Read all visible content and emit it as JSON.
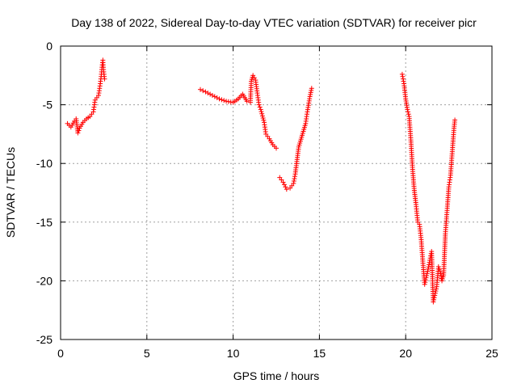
{
  "chart_data": {
    "type": "scatter",
    "title": "Day 138 of 2022, Sidereal Day-to-day VTEC variation (SDTVAR) for receiver picr",
    "xlabel": "GPS time / hours",
    "ylabel": "SDTVAR / TECUs",
    "xlim": [
      0,
      25
    ],
    "ylim": [
      -25,
      0
    ],
    "xticks": [
      "0",
      "5",
      "10",
      "15",
      "20",
      "25"
    ],
    "yticks": [
      "0",
      "-5",
      "-10",
      "-15",
      "-20",
      "-25"
    ],
    "grid": true,
    "marker": "+",
    "color": "#ff0000",
    "series": [
      {
        "segments": [
          [
            [
              0.4,
              -6.6
            ],
            [
              0.6,
              -6.9
            ],
            [
              0.8,
              -6.4
            ],
            [
              0.9,
              -6.2
            ],
            [
              1.0,
              -7.4
            ],
            [
              1.1,
              -7.0
            ],
            [
              1.3,
              -6.5
            ],
            [
              1.5,
              -6.2
            ],
            [
              1.7,
              -6.0
            ],
            [
              1.9,
              -5.6
            ],
            [
              2.0,
              -4.6
            ],
            [
              2.1,
              -4.4
            ],
            [
              2.2,
              -4.2
            ],
            [
              2.3,
              -3.2
            ],
            [
              2.35,
              -2.6
            ],
            [
              2.4,
              -1.8
            ],
            [
              2.45,
              -1.2
            ],
            [
              2.5,
              -2.2
            ],
            [
              2.55,
              -2.8
            ]
          ],
          [
            [
              8.1,
              -3.7
            ],
            [
              8.4,
              -3.9
            ],
            [
              8.8,
              -4.2
            ],
            [
              9.2,
              -4.5
            ],
            [
              9.6,
              -4.7
            ],
            [
              10.0,
              -4.8
            ],
            [
              10.3,
              -4.5
            ],
            [
              10.55,
              -4.1
            ],
            [
              10.8,
              -4.7
            ],
            [
              11.0,
              -4.8
            ],
            [
              11.05,
              -3.0
            ],
            [
              11.15,
              -2.5
            ],
            [
              11.3,
              -2.9
            ],
            [
              11.4,
              -4.0
            ],
            [
              11.5,
              -5.0
            ],
            [
              11.6,
              -5.4
            ],
            [
              11.8,
              -6.5
            ],
            [
              11.9,
              -7.5
            ],
            [
              12.1,
              -7.9
            ],
            [
              12.3,
              -8.4
            ],
            [
              12.5,
              -8.7
            ]
          ],
          [
            [
              12.7,
              -11.2
            ],
            [
              12.9,
              -11.6
            ],
            [
              13.1,
              -12.2
            ],
            [
              13.3,
              -12.1
            ],
            [
              13.5,
              -11.7
            ],
            [
              13.6,
              -10.9
            ],
            [
              13.8,
              -8.6
            ],
            [
              14.0,
              -7.6
            ],
            [
              14.2,
              -6.6
            ],
            [
              14.3,
              -5.6
            ],
            [
              14.45,
              -4.3
            ],
            [
              14.55,
              -3.6
            ]
          ],
          [
            [
              19.8,
              -2.4
            ],
            [
              19.9,
              -3.2
            ],
            [
              20.0,
              -4.5
            ],
            [
              20.1,
              -5.4
            ],
            [
              20.2,
              -6.0
            ],
            [
              20.3,
              -8.0
            ],
            [
              20.4,
              -10.5
            ],
            [
              20.5,
              -12.3
            ],
            [
              20.6,
              -13.5
            ],
            [
              20.7,
              -15.0
            ],
            [
              20.8,
              -15.2
            ],
            [
              20.9,
              -16.5
            ],
            [
              21.0,
              -18.5
            ],
            [
              21.1,
              -20.3
            ],
            [
              21.3,
              -19.0
            ],
            [
              21.5,
              -17.5
            ],
            [
              21.6,
              -21.8
            ],
            [
              21.8,
              -20.5
            ],
            [
              21.9,
              -18.8
            ],
            [
              22.0,
              -19.2
            ],
            [
              22.1,
              -20.0
            ],
            [
              22.2,
              -19.5
            ],
            [
              22.3,
              -16.0
            ],
            [
              22.4,
              -14.0
            ],
            [
              22.5,
              -12.0
            ],
            [
              22.6,
              -11.0
            ],
            [
              22.7,
              -9.0
            ],
            [
              22.8,
              -7.0
            ],
            [
              22.85,
              -6.3
            ]
          ]
        ]
      }
    ]
  }
}
